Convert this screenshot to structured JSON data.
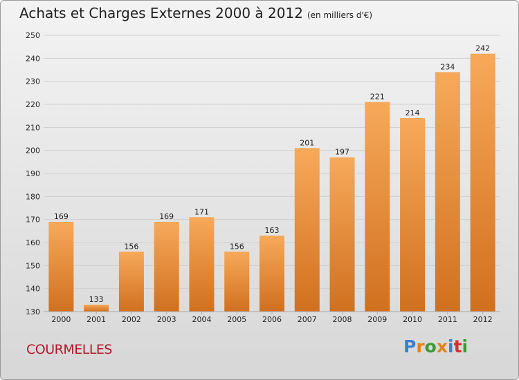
{
  "title": "Achats et Charges Externes 2000 à 2012",
  "unit": "(en milliers d'€)",
  "commune": "COURMELLES",
  "logo": {
    "text": "Proxiti",
    "colors": [
      "#3b7fd0",
      "#e0841c",
      "#3a9a33",
      "#e0841c",
      "#3b7fd0",
      "#d62e2e",
      "#3a9a33"
    ]
  },
  "colors": {
    "bar_top": "#f7a95a",
    "bar_bottom": "#d0701f",
    "grid": "#cfcfcf",
    "text": "#222222"
  },
  "chart_data": {
    "type": "bar",
    "categories": [
      "2000",
      "2001",
      "2002",
      "2003",
      "2004",
      "2005",
      "2006",
      "2007",
      "2008",
      "2009",
      "2010",
      "2011",
      "2012"
    ],
    "values": [
      169,
      133,
      156,
      169,
      171,
      156,
      163,
      201,
      197,
      221,
      214,
      234,
      242
    ],
    "ylim": [
      130,
      250
    ],
    "yticks": [
      130,
      140,
      150,
      160,
      170,
      180,
      190,
      200,
      210,
      220,
      230,
      240,
      250
    ],
    "grid": true,
    "data_labels": true
  }
}
